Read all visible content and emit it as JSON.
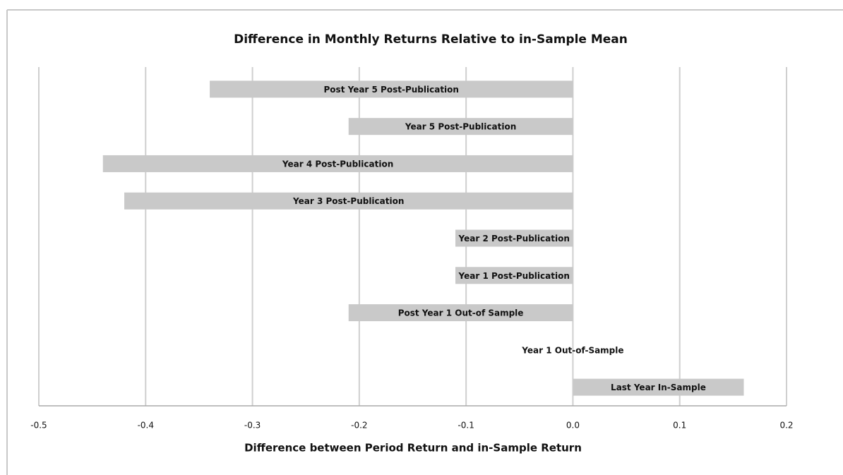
{
  "chart_data": {
    "type": "hbar",
    "title": "Difference in Monthly Returns Relative to in-Sample Mean",
    "x_label": "Difference between Period Return and in-Sample Return",
    "categories": [
      "Last Year In-Sample",
      "Year 1 Out-of-Sample",
      "Post Year 1 Out-of Sample",
      "Year 1 Post-Publication",
      "Year 2 Post-Publication",
      "Year 3 Post-Publication",
      "Year 4 Post-Publication",
      "Year 5 Post-Publication",
      "Post Year 5 Post-Publication"
    ],
    "values": [
      0.16,
      0,
      -0.21,
      -0.11,
      -0.11,
      -0.42,
      -0.44,
      -0.21,
      -0.34
    ],
    "color": "#c9c9c9",
    "xlim": [
      -0.5,
      0.2
    ],
    "xticks": [
      -0.5,
      -0.4,
      -0.3,
      -0.2,
      -0.1,
      {
        "value": 0,
        "label": "0.0"
      },
      0.1,
      0.2
    ],
    "grid": true
  }
}
